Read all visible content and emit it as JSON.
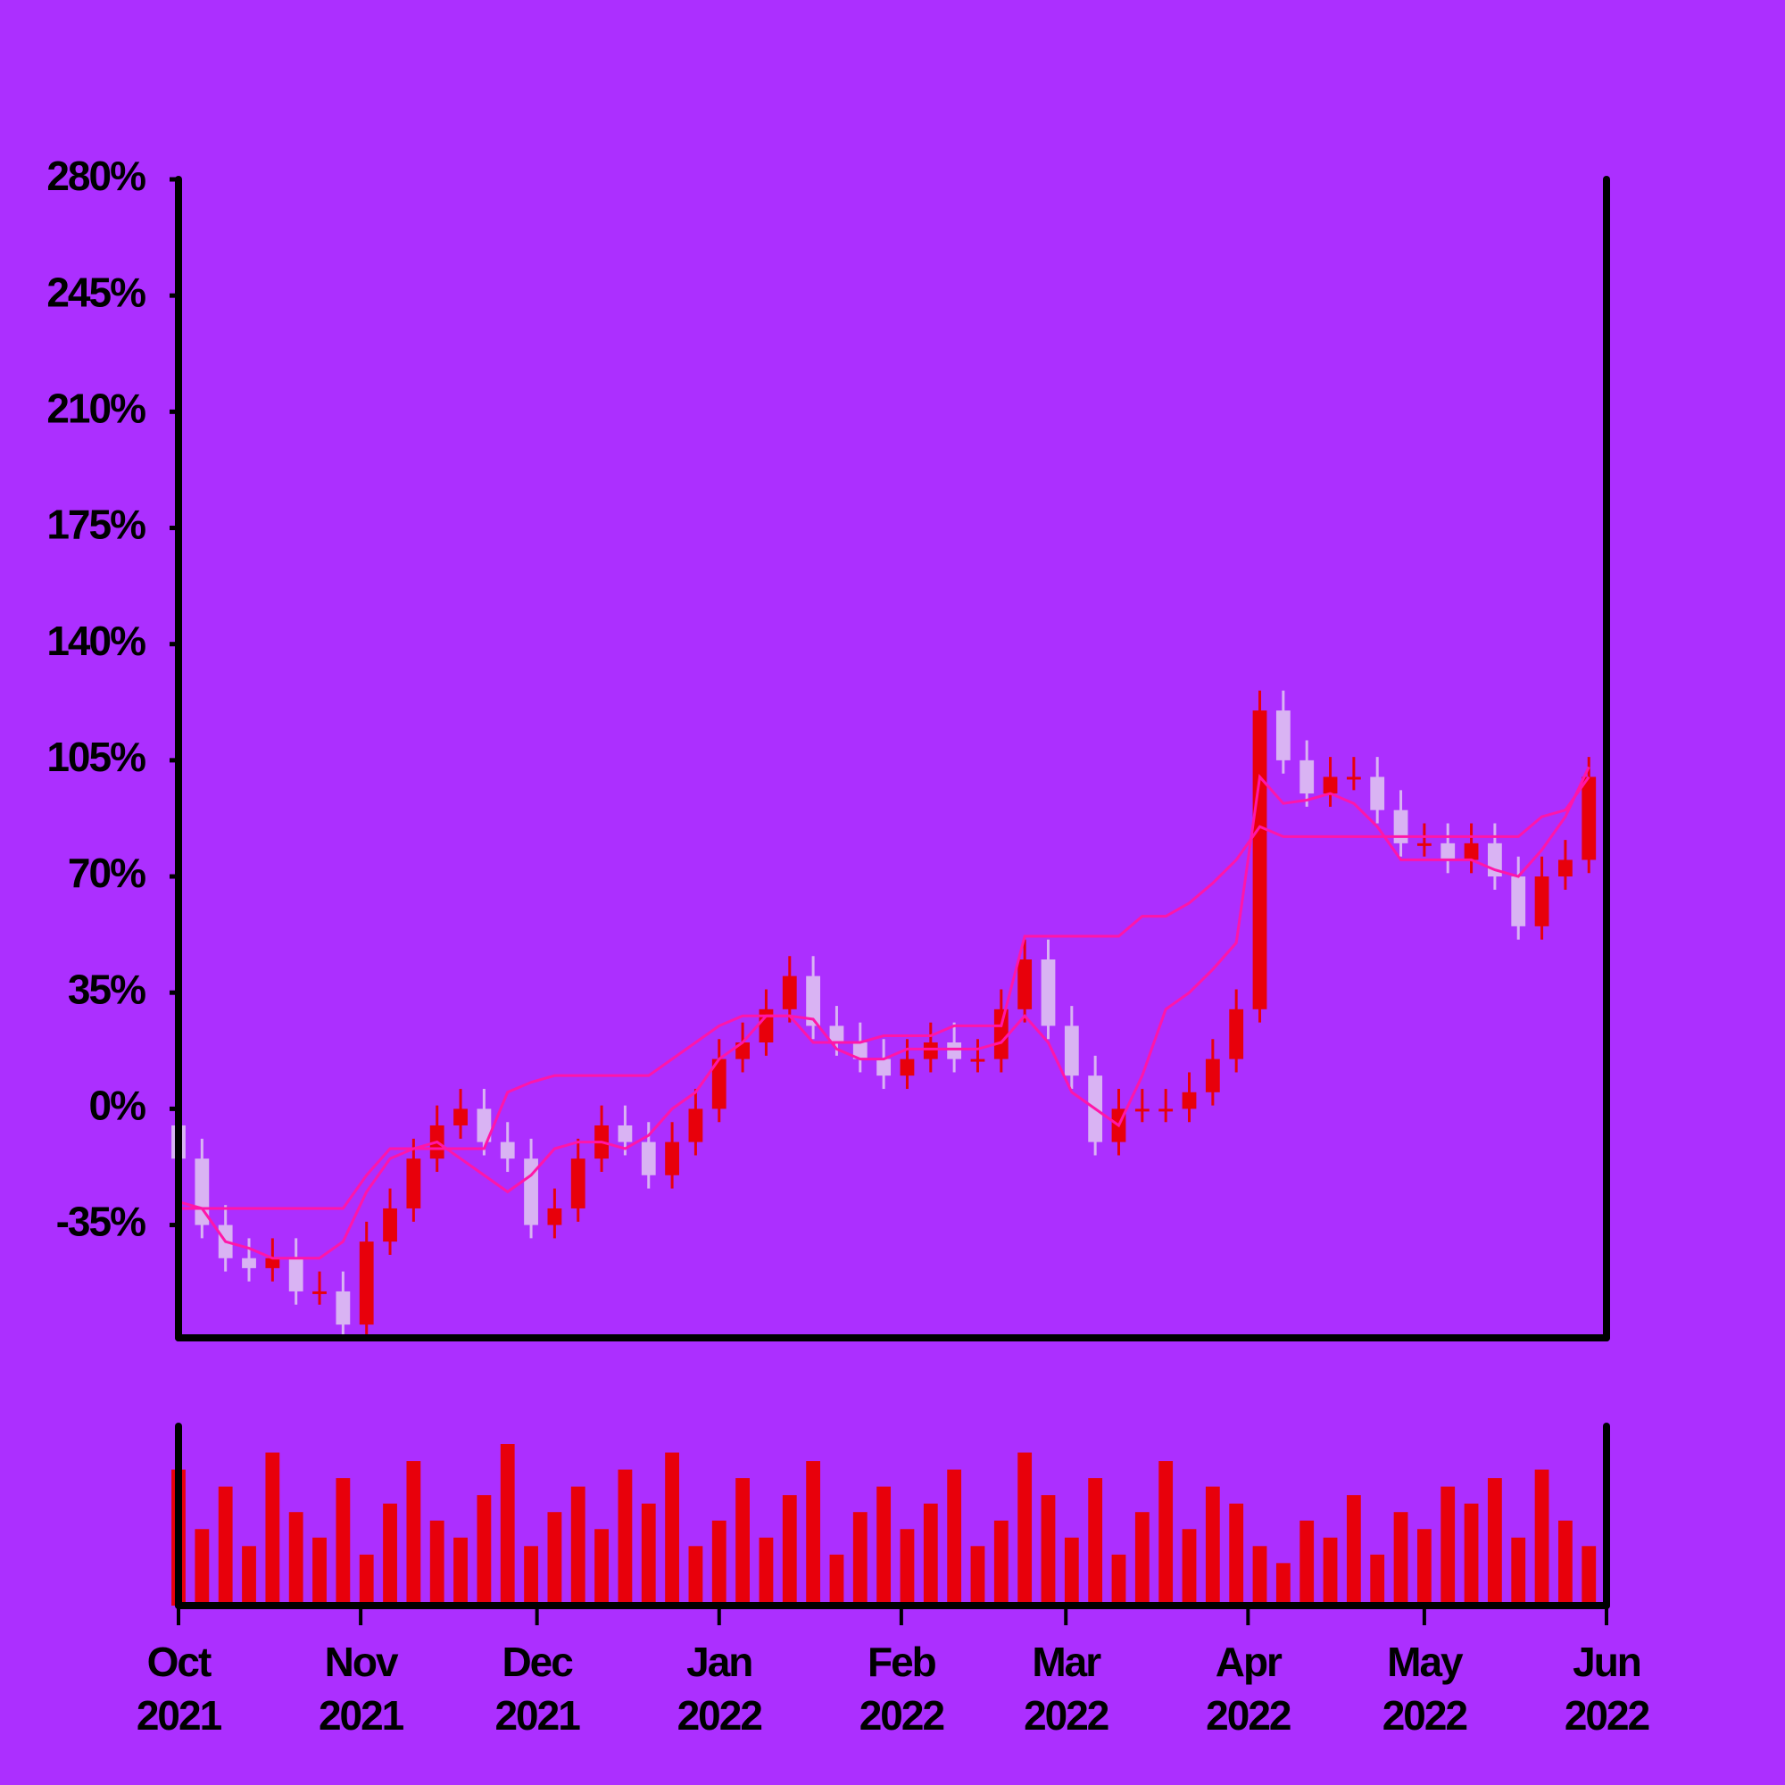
{
  "chart_data": {
    "type": "candlestick",
    "x": [
      0,
      4,
      8,
      12,
      16,
      20,
      24,
      28,
      32,
      36,
      40,
      44,
      48,
      52,
      56,
      60,
      64,
      68,
      72,
      76,
      80,
      84,
      88,
      92,
      96,
      100,
      104,
      108,
      112,
      116,
      120,
      124,
      128,
      132,
      136,
      140,
      144,
      148,
      152,
      156,
      160,
      164,
      168,
      172,
      176,
      180,
      184,
      188,
      192,
      196,
      200,
      204,
      208,
      212,
      216,
      220,
      224,
      228,
      232,
      236,
      240
    ],
    "xlim": [
      0,
      243
    ],
    "xticks": [
      {
        "value": 0,
        "label": "Oct 2021"
      },
      {
        "value": 31,
        "label": "Nov 2021"
      },
      {
        "value": 61,
        "label": "Dec 2021"
      },
      {
        "value": 92,
        "label": "Jan 2022"
      },
      {
        "value": 123,
        "label": "Feb 2022"
      },
      {
        "value": 151,
        "label": "Mar 2022"
      },
      {
        "value": 182,
        "label": "Apr 2022"
      },
      {
        "value": 212,
        "label": "May 2022"
      },
      {
        "value": 243,
        "label": "Jun 2022"
      }
    ],
    "ylim": [
      -69,
      280
    ],
    "yticks": [
      {
        "value": -35,
        "label": "-35%"
      },
      {
        "value": 0,
        "label": "0%"
      },
      {
        "value": 35,
        "label": "35%"
      },
      {
        "value": 70,
        "label": "70%"
      },
      {
        "value": 105,
        "label": "105%"
      },
      {
        "value": 140,
        "label": "140%"
      },
      {
        "value": 175,
        "label": "175%"
      },
      {
        "value": 210,
        "label": "210%"
      },
      {
        "value": 245,
        "label": "245%"
      },
      {
        "value": 280,
        "label": "280%"
      }
    ],
    "open": [
      -5,
      -15,
      -35,
      -45,
      -48,
      -45,
      -55,
      -55,
      -65,
      -40,
      -30,
      -15,
      -5,
      0,
      -10,
      -15,
      -35,
      -30,
      -15,
      -5,
      -10,
      -20,
      -10,
      0,
      15,
      20,
      30,
      40,
      25,
      20,
      15,
      10,
      15,
      20,
      15,
      15,
      30,
      45,
      25,
      10,
      -10,
      0,
      0,
      0,
      5,
      15,
      30,
      120,
      105,
      95,
      100,
      100,
      90,
      80,
      80,
      75,
      80,
      70,
      55,
      70,
      75
    ],
    "high": [
      1,
      -9,
      -29,
      -39,
      -39,
      -39,
      -49,
      -49,
      -34,
      -24,
      -9,
      1,
      6,
      6,
      -4,
      -9,
      -24,
      -9,
      1,
      1,
      -4,
      -4,
      6,
      21,
      26,
      36,
      46,
      46,
      31,
      26,
      21,
      21,
      26,
      26,
      21,
      36,
      51,
      51,
      31,
      16,
      6,
      6,
      6,
      11,
      21,
      36,
      126,
      126,
      111,
      106,
      106,
      106,
      96,
      86,
      86,
      86,
      86,
      76,
      76,
      81,
      106
    ],
    "low": [
      -19,
      -39,
      -49,
      -52,
      -52,
      -59,
      -59,
      -69,
      -69,
      -44,
      -34,
      -19,
      -9,
      -14,
      -19,
      -39,
      -39,
      -34,
      -19,
      -14,
      -24,
      -24,
      -14,
      -4,
      11,
      16,
      26,
      21,
      16,
      11,
      6,
      6,
      11,
      11,
      11,
      11,
      26,
      21,
      6,
      -14,
      -14,
      -4,
      -4,
      -4,
      1,
      11,
      26,
      101,
      91,
      91,
      96,
      86,
      76,
      76,
      71,
      71,
      66,
      51,
      51,
      66,
      71
    ],
    "close": [
      -15,
      -35,
      -45,
      -48,
      -45,
      -55,
      -55,
      -65,
      -40,
      -30,
      -15,
      -5,
      0,
      -10,
      -15,
      -35,
      -30,
      -15,
      -5,
      -10,
      -20,
      -10,
      0,
      15,
      20,
      30,
      40,
      25,
      20,
      15,
      10,
      15,
      20,
      15,
      15,
      30,
      45,
      25,
      10,
      -10,
      0,
      0,
      0,
      5,
      15,
      30,
      120,
      105,
      95,
      100,
      100,
      90,
      80,
      80,
      75,
      80,
      70,
      55,
      70,
      75,
      100
    ],
    "volume": [
      80,
      45,
      70,
      35,
      90,
      55,
      40,
      75,
      30,
      60,
      85,
      50,
      40,
      65,
      95,
      35,
      55,
      70,
      45,
      80,
      60,
      90,
      35,
      50,
      75,
      40,
      65,
      85,
      30,
      55,
      70,
      45,
      60,
      80,
      35,
      50,
      90,
      65,
      40,
      75,
      30,
      55,
      85,
      45,
      70,
      60,
      35,
      25,
      50,
      40,
      65,
      30,
      55,
      45,
      70,
      60,
      75,
      40,
      80,
      50,
      35
    ],
    "up_color": "#e8000b",
    "down_color": "#d9b3f3",
    "volume_color": "#e8000b",
    "series": [
      {
        "color": "#ff16a8",
        "values": [
          -30,
          -30,
          -30,
          -30,
          -30,
          -30,
          -30,
          -30,
          -20,
          -12,
          -12,
          -12,
          -12,
          -12,
          5,
          8,
          10,
          10,
          10,
          10,
          10,
          15,
          20,
          25,
          28,
          28,
          28,
          20,
          20,
          20,
          22,
          22,
          22,
          25,
          25,
          25,
          52,
          52,
          52,
          52,
          52,
          58,
          58,
          62,
          68,
          75,
          85,
          82,
          82,
          82,
          82,
          82,
          82,
          82,
          82,
          82,
          82,
          82,
          88,
          90,
          100
        ]
      },
      {
        "color": "#ff16a8",
        "values": [
          -28,
          -30,
          -40,
          -42,
          -45,
          -45,
          -45,
          -40,
          -25,
          -15,
          -12,
          -10,
          -15,
          -20,
          -25,
          -20,
          -12,
          -10,
          -10,
          -12,
          -8,
          0,
          5,
          15,
          20,
          28,
          28,
          27,
          18,
          15,
          15,
          18,
          18,
          18,
          18,
          20,
          28,
          20,
          5,
          0,
          -5,
          10,
          30,
          35,
          42,
          50,
          100,
          92,
          93,
          95,
          92,
          85,
          75,
          75,
          75,
          75,
          72,
          70,
          78,
          88,
          103
        ]
      }
    ]
  }
}
